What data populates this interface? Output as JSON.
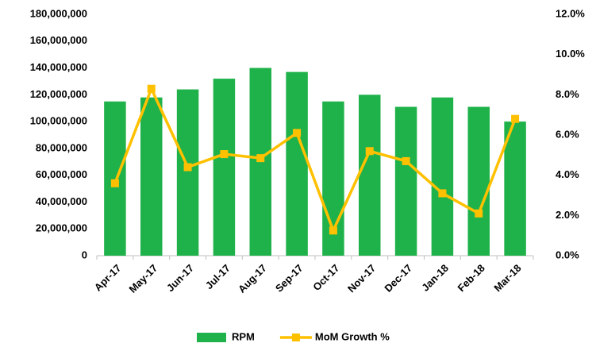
{
  "chart_data": {
    "type": "bar_line",
    "categories": [
      "Apr-17",
      "May-17",
      "Jun-17",
      "Jul-17",
      "Aug-17",
      "Sep-17",
      "Oct-17",
      "Nov-17",
      "Dec-17",
      "Jan-18",
      "Feb-18",
      "Mar-18"
    ],
    "series": [
      {
        "name": "RPM",
        "type": "bar",
        "color": "#1fb24a",
        "values": [
          115000000,
          118000000,
          124000000,
          132000000,
          140000000,
          137000000,
          115000000,
          120000000,
          111000000,
          118000000,
          111000000,
          100000000
        ]
      },
      {
        "name": "MoM Growth %",
        "type": "line",
        "axis": "y2",
        "color": "#ffc000",
        "values": [
          3.6,
          8.3,
          4.4,
          5.05,
          4.85,
          6.1,
          1.25,
          5.2,
          4.7,
          3.1,
          2.1,
          6.8
        ]
      }
    ],
    "ylim": [
      0,
      180000000
    ],
    "yticks": [
      0,
      {
        "value": 20000000,
        "label": "20,000,000"
      },
      {
        "value": 40000000,
        "label": "40,000,000"
      },
      {
        "value": 60000000,
        "label": "60,000,000"
      },
      {
        "value": 80000000,
        "label": "80,000,000"
      },
      {
        "value": 100000000,
        "label": "100,000,000"
      },
      {
        "value": 120000000,
        "label": "120,000,000"
      },
      {
        "value": 140000000,
        "label": "140,000,000"
      },
      {
        "value": 160000000,
        "label": "160,000,000"
      },
      {
        "value": 180000000,
        "label": "180,000,000"
      }
    ],
    "y2lim": [
      0,
      12
    ],
    "y2ticks": [
      {
        "value": 0,
        "label": "0.0%"
      },
      {
        "value": 2,
        "label": "2.0%"
      },
      {
        "value": 4,
        "label": "4.0%"
      },
      {
        "value": 6,
        "label": "6.0%"
      },
      {
        "value": 8,
        "label": "8.0%"
      },
      {
        "value": 10,
        "label": "10.0%"
      },
      {
        "value": 12,
        "label": "12.0%"
      }
    ],
    "grid": false,
    "legend": "bottom"
  }
}
